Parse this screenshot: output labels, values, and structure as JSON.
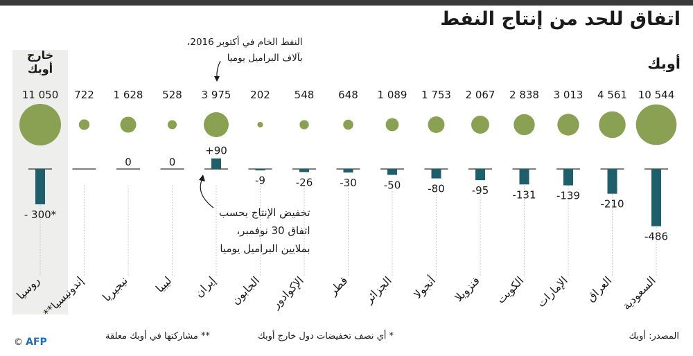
{
  "title": "اتفاق للحد من إنتاج النفط",
  "group_label": "أوبك",
  "outside_label": "خارج أوبك",
  "notes": {
    "crude_line1": "النفط الخام في أكتوبر 2016،",
    "crude_line2": "بآلاف البراميل يوميا",
    "cut_line1": "تخفيض الإنتاج بحسب",
    "cut_line2": "اتفاق 30 نوفمبر،",
    "cut_line3": "بملايين البراميل يوميا"
  },
  "footnotes": {
    "source": "المصدر: أوبك",
    "half": "* أي نصف تخفيضات دول خارج أوبك",
    "suspended": "** مشاركتها في أوبك معلقة"
  },
  "credit": "AFP",
  "colors": {
    "bubble": "#8aa052",
    "bar": "#1f5f6b",
    "baseline": "#333333",
    "panel": "#eeeeec"
  },
  "chart_data": {
    "type": "bubble-bar",
    "title": "اتفاق للحد من إنتاج النفط",
    "bubble_series_name": "النفط الخام في أكتوبر 2016، بآلاف البراميل يوميا",
    "bar_series_name": "تخفيض الإنتاج بحسب اتفاق 30 نوفمبر، بملايين البراميل يوميا",
    "categories": [
      "السعودية",
      "العراق",
      "الإمارات",
      "الكويت",
      "فنزويلا",
      "أنجولا",
      "الجزائر",
      "قطر",
      "الإكوادور",
      "الجابون",
      "إيران",
      "ليبيا",
      "نيجيريا",
      "إندونيسيا**",
      "روسيا"
    ],
    "production_labels": [
      "10 544",
      "4 561",
      "3 013",
      "2 838",
      "2 067",
      "1 753",
      "1 089",
      "648",
      "548",
      "202",
      "3 975",
      "528",
      "1 628",
      "722",
      "11 050"
    ],
    "production": [
      10544,
      4561,
      3013,
      2838,
      2067,
      1753,
      1089,
      648,
      548,
      202,
      3975,
      528,
      1628,
      722,
      11050
    ],
    "change_labels": [
      "-486",
      "-210",
      "-139",
      "-131",
      "-95",
      "-80",
      "-50",
      "-30",
      "-26",
      "-9",
      "+90",
      "0",
      "0",
      "",
      "- 300*"
    ],
    "change": [
      -486,
      -210,
      -139,
      -131,
      -95,
      -80,
      -50,
      -30,
      -26,
      -9,
      90,
      0,
      0,
      0,
      -300
    ],
    "group": [
      "opec",
      "opec",
      "opec",
      "opec",
      "opec",
      "opec",
      "opec",
      "opec",
      "opec",
      "opec",
      "opec",
      "opec",
      "opec",
      "opec",
      "non-opec"
    ]
  }
}
